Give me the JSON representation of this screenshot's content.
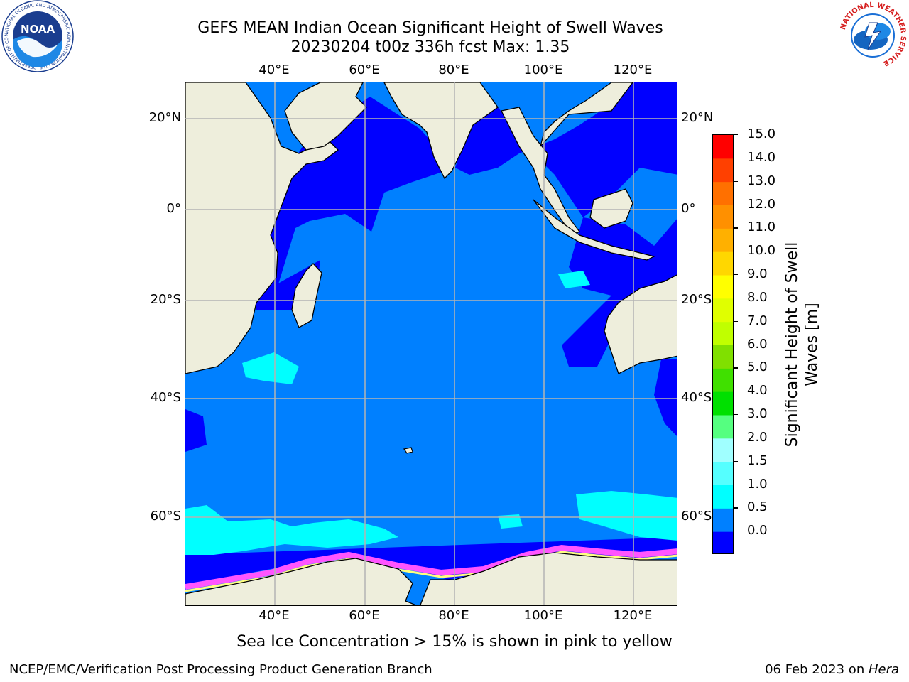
{
  "title_line1": "GEFS MEAN Indian Ocean Significant Height of Swell Waves",
  "title_line2": "20230204 t00z 336h fcst   Max: 1.35",
  "map": {
    "lon_ticks": [
      "40°E",
      "60°E",
      "80°E",
      "100°E",
      "120°E"
    ],
    "lat_ticks_left": [
      "20°N",
      "0°",
      "20°S",
      "40°S",
      "60°S"
    ],
    "lat_ticks_right": [
      "20°N",
      "0°",
      "20°S",
      "40°S",
      "60°S"
    ],
    "colors": {
      "land": "#eeeedc",
      "ocean_main": "#0080ff",
      "ocean_low": "#0000ff",
      "swell_cyan": "#00ffff",
      "swell_light": "#55ffff",
      "sea_ice": "#ff55ff",
      "grid": "#b4b4b4"
    }
  },
  "colorbar": {
    "label": "Significant Height of Swell Waves [m]",
    "ticks": [
      "15.0",
      "14.0",
      "13.0",
      "12.0",
      "11.0",
      "10.0",
      "9.0",
      "8.0",
      "7.0",
      "6.0",
      "5.0",
      "4.0",
      "3.0",
      "2.0",
      "1.5",
      "1.0",
      "0.5",
      "0.0"
    ],
    "colors_bottom_to_top": [
      "#0000ff",
      "#0080ff",
      "#00ffff",
      "#55ffff",
      "#a0ffff",
      "#55ff80",
      "#00e000",
      "#40e000",
      "#80e000",
      "#c0ff00",
      "#e0ff00",
      "#ffff00",
      "#ffd700",
      "#ffb000",
      "#ff9000",
      "#ff7000",
      "#ff4000",
      "#ff0000"
    ]
  },
  "note": "Sea Ice Concentration > 15% is shown in pink to yellow",
  "footer": {
    "left": "NCEP/EMC/Verification Post Processing Product Generation Branch",
    "right_date": "06 Feb 2023 on ",
    "right_host": "Hera"
  },
  "logos": {
    "noaa_text": "NOAA",
    "noaa_ring_text": "NATIONAL OCEANIC AND ATMOSPHERIC ADMINISTRATION · U.S. DEPARTMENT OF COMMERCE",
    "nws_ring_text": "NATIONAL WEATHER SERVICE"
  }
}
